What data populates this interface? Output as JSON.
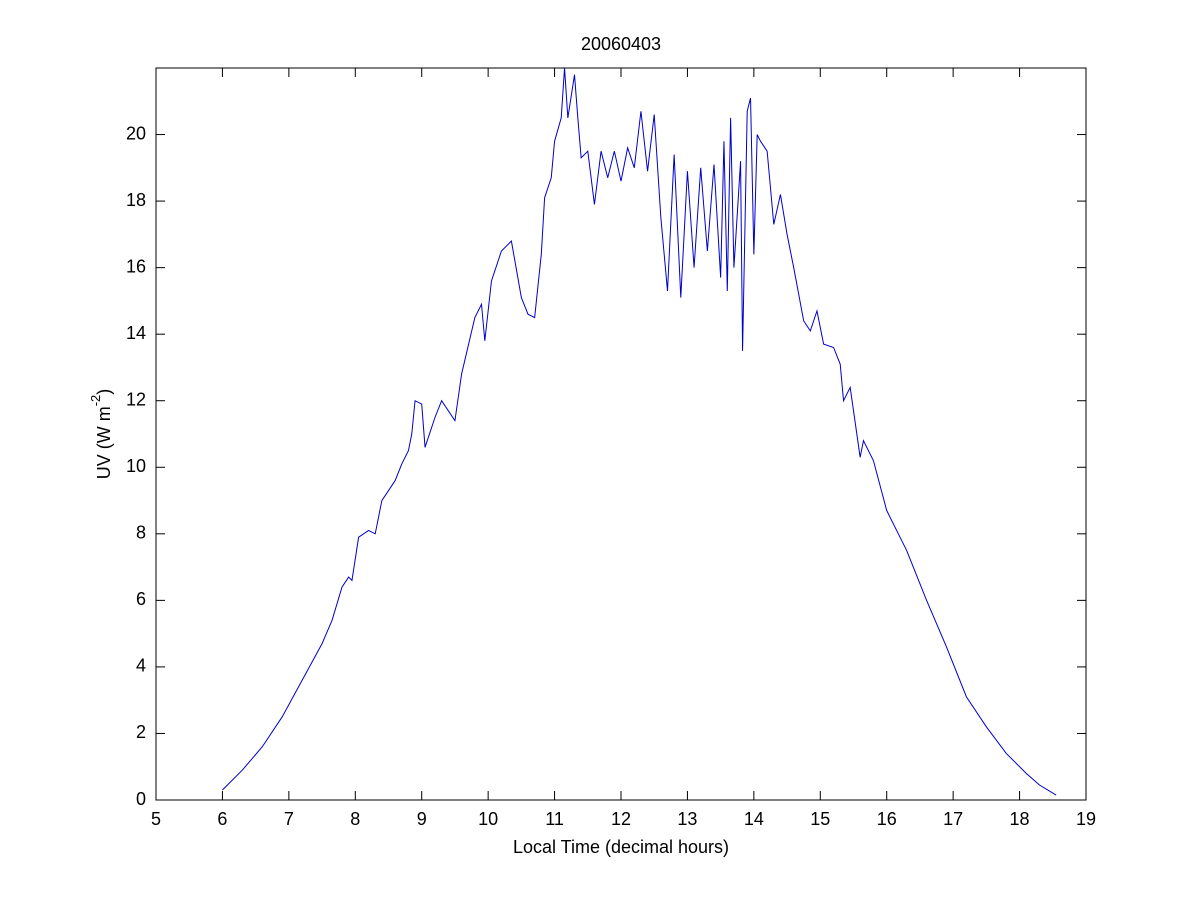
{
  "chart_data": {
    "type": "line",
    "title": "20060403",
    "x_label": "Local Time (decimal hours)",
    "y_label_parts": [
      "UV (W m",
      "-2",
      ")"
    ],
    "x": [
      6.0,
      6.3,
      6.6,
      6.9,
      7.2,
      7.5,
      7.65,
      7.8,
      7.9,
      7.95,
      8.05,
      8.2,
      8.3,
      8.4,
      8.6,
      8.7,
      8.8,
      8.85,
      8.9,
      9.0,
      9.05,
      9.2,
      9.3,
      9.5,
      9.6,
      9.8,
      9.9,
      9.95,
      10.05,
      10.2,
      10.35,
      10.5,
      10.6,
      10.7,
      10.8,
      10.85,
      10.95,
      11.0,
      11.1,
      11.15,
      11.2,
      11.3,
      11.35,
      11.4,
      11.5,
      11.6,
      11.7,
      11.8,
      11.9,
      12.0,
      12.1,
      12.2,
      12.3,
      12.4,
      12.5,
      12.6,
      12.7,
      12.8,
      12.9,
      13.0,
      13.1,
      13.2,
      13.3,
      13.4,
      13.5,
      13.55,
      13.6,
      13.65,
      13.7,
      13.8,
      13.83,
      13.9,
      13.95,
      14.0,
      14.05,
      14.1,
      14.2,
      14.3,
      14.4,
      14.5,
      14.6,
      14.75,
      14.85,
      14.95,
      15.05,
      15.2,
      15.3,
      15.35,
      15.45,
      15.55,
      15.6,
      15.65,
      15.8,
      16.0,
      16.3,
      16.6,
      16.9,
      17.2,
      17.5,
      17.8,
      18.1,
      18.3,
      18.55
    ],
    "series": [
      {
        "color": "#0000cc",
        "values": [
          0.3,
          0.9,
          1.6,
          2.5,
          3.6,
          4.7,
          5.4,
          6.4,
          6.7,
          6.6,
          7.9,
          8.1,
          8.0,
          9.0,
          9.6,
          10.1,
          10.5,
          11.0,
          12.0,
          11.9,
          10.6,
          11.5,
          12.0,
          11.4,
          12.8,
          14.5,
          14.9,
          13.8,
          15.6,
          16.5,
          16.8,
          15.1,
          14.6,
          14.5,
          16.4,
          18.1,
          18.7,
          19.8,
          20.5,
          22.0,
          20.5,
          21.8,
          20.5,
          19.3,
          19.5,
          17.9,
          19.5,
          18.7,
          19.5,
          18.6,
          19.6,
          19.0,
          20.7,
          18.9,
          20.6,
          17.5,
          15.3,
          19.4,
          15.1,
          18.9,
          16.0,
          19.0,
          16.5,
          19.1,
          15.7,
          19.8,
          15.3,
          20.5,
          16.0,
          19.2,
          13.5,
          20.7,
          21.1,
          16.4,
          20.0,
          19.8,
          19.5,
          17.3,
          18.2,
          17.0,
          16.0,
          14.4,
          14.1,
          14.7,
          13.7,
          13.6,
          13.1,
          12.0,
          12.4,
          11.0,
          10.3,
          10.8,
          10.2,
          8.7,
          7.5,
          6.0,
          4.6,
          3.1,
          2.2,
          1.4,
          0.8,
          0.45,
          0.15
        ]
      }
    ],
    "xlim": [
      5,
      19
    ],
    "xticks": [
      5,
      6,
      7,
      8,
      9,
      10,
      11,
      12,
      13,
      14,
      15,
      16,
      17,
      18,
      19
    ],
    "ylim": [
      0,
      22
    ],
    "yticks": [
      0,
      2,
      4,
      6,
      8,
      10,
      12,
      14,
      16,
      18,
      20
    ],
    "grid": false
  }
}
